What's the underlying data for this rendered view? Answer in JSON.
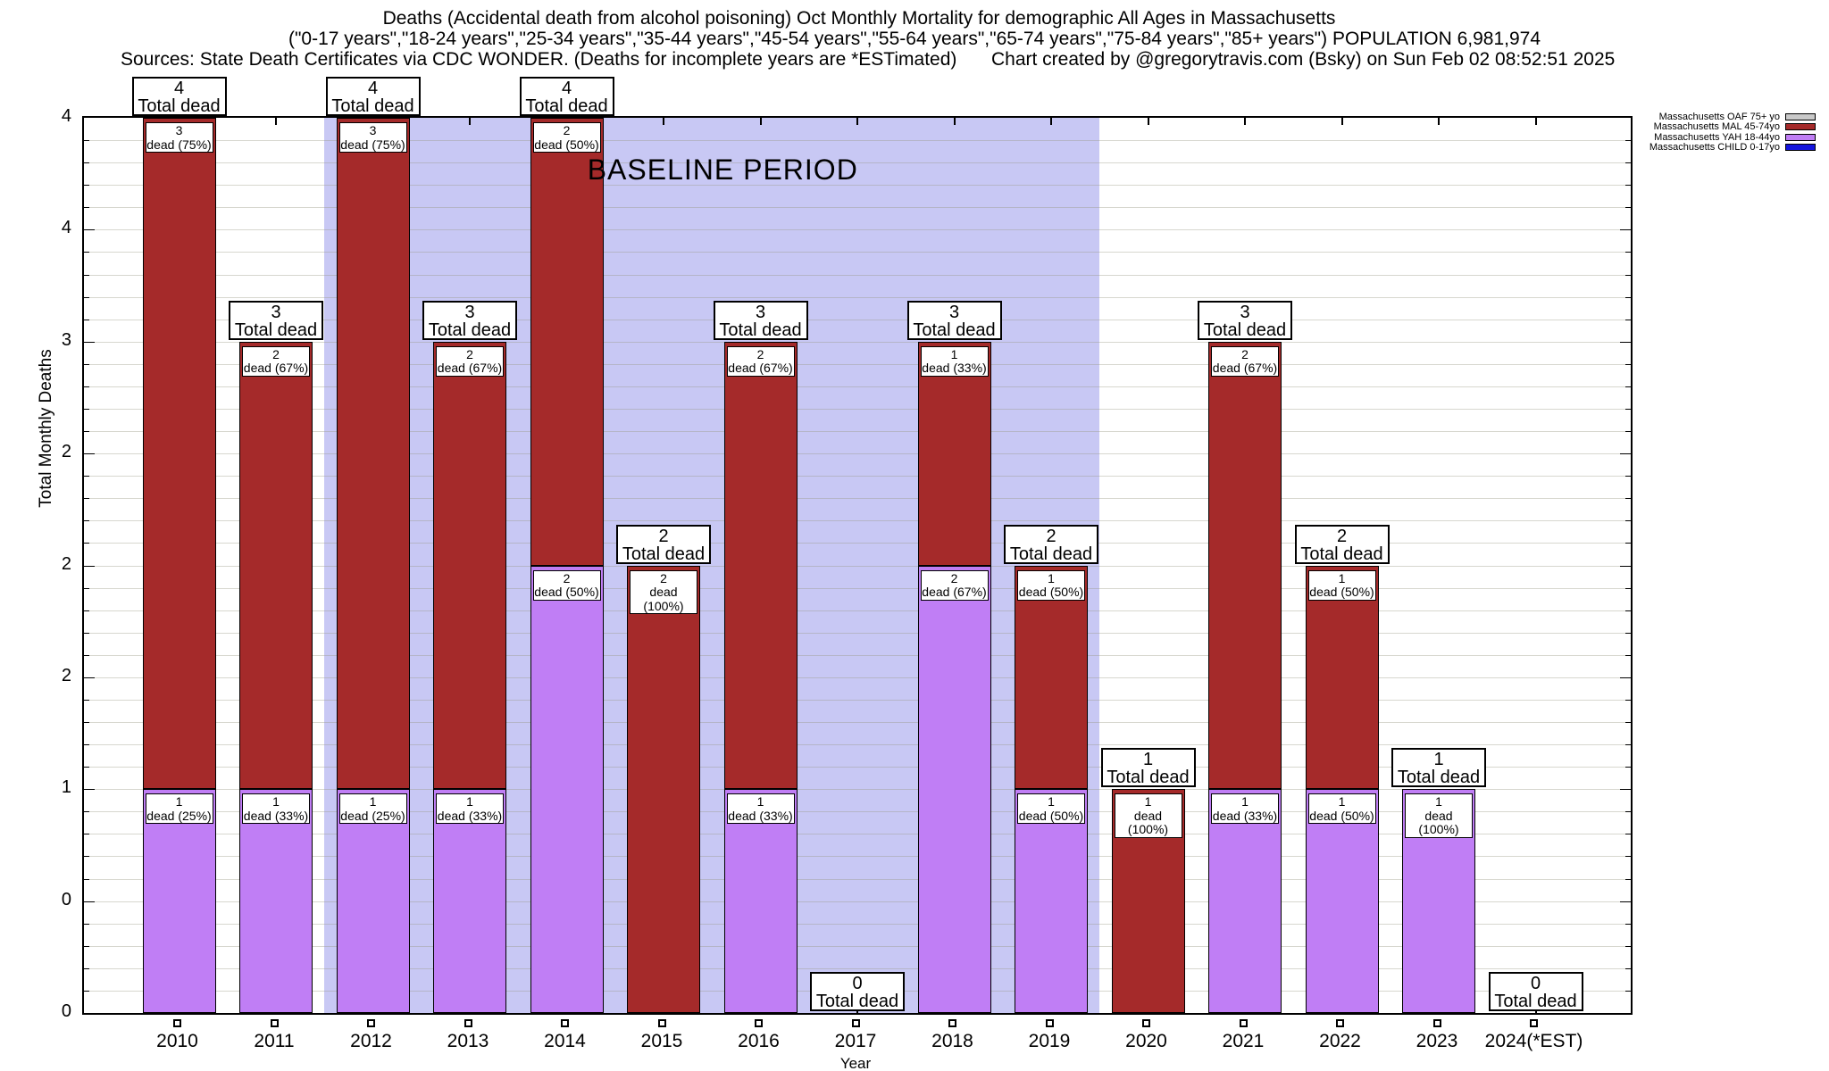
{
  "chart_data": {
    "type": "bar",
    "stacked": true,
    "title": "Deaths (Accidental death from alcohol poisoning) Oct Monthly Mortality for demographic All Ages in Massachusetts",
    "subtitle": "(\"0-17 years\",\"18-24 years\",\"25-34 years\",\"35-44 years\",\"45-54 years\",\"55-64 years\",\"65-74 years\",\"75-84 years\",\"85+ years\") POPULATION 6,981,974",
    "source_note": "Sources: State Death Certificates via CDC WONDER. (Deaths for incomplete years are *ESTimated)",
    "credit_note": "Chart created by @gregorytravis.com (Bsky) on Sun Feb 02 08:52:51 2025",
    "xlabel": "Year",
    "ylabel": "Total Monthly Deaths",
    "ylim": [
      0,
      4
    ],
    "ytick_major_step": 0.5,
    "ytick_minor_step": 0.1,
    "ytick_labels_bottom_to_top": [
      "0",
      "0",
      "1",
      "2",
      "2",
      "2",
      "3",
      "4",
      "4"
    ],
    "grid": true,
    "legend_position": "top-right",
    "categories": [
      "2010",
      "2011",
      "2012",
      "2013",
      "2014",
      "2015",
      "2016",
      "2017",
      "2018",
      "2019",
      "2020",
      "2021",
      "2022",
      "2023",
      "2024(*EST)"
    ],
    "legend": [
      {
        "name": "Massachusetts OAF 75+ yo",
        "color": "#c9c9c9"
      },
      {
        "name": "Massachusetts MAL 45-74yo",
        "color": "#a52a2a"
      },
      {
        "name": "Massachusetts YAH 18-44yo",
        "color": "#c07ef5"
      },
      {
        "name": "Massachusetts CHILD 0-17yo",
        "color": "#1414dd"
      }
    ],
    "series": [
      {
        "name": "Massachusetts YAH 18-44yo",
        "key": "yah",
        "color": "#c07ef5",
        "values": [
          1,
          1,
          1,
          1,
          2,
          0,
          1,
          0,
          2,
          1,
          0,
          1,
          1,
          1,
          0
        ]
      },
      {
        "name": "Massachusetts MAL 45-74yo",
        "key": "mal",
        "color": "#a52a2a",
        "values": [
          3,
          2,
          3,
          2,
          2,
          2,
          2,
          0,
          1,
          1,
          1,
          2,
          1,
          0,
          0
        ]
      },
      {
        "name": "Massachusetts OAF 75+ yo",
        "key": "oaf",
        "color": "#c9c9c9",
        "values": [
          0,
          0,
          0,
          0,
          0,
          0,
          0,
          0,
          0,
          0,
          0,
          0,
          0,
          0,
          0
        ]
      },
      {
        "name": "Massachusetts CHILD 0-17yo",
        "key": "child",
        "color": "#1414dd",
        "values": [
          0,
          0,
          0,
          0,
          0,
          0,
          0,
          0,
          0,
          0,
          0,
          0,
          0,
          0,
          0
        ]
      }
    ],
    "totals": [
      4,
      3,
      4,
      3,
      4,
      2,
      3,
      0,
      3,
      2,
      1,
      3,
      2,
      1,
      0
    ],
    "total_box_word": "Total dead",
    "baseline": {
      "label": "BASELINE PERIOD",
      "start_category": "2012",
      "end_category": "2019",
      "color": "#c8c8f4"
    },
    "bars": [
      {
        "year": "2010",
        "total": 4,
        "segments": [
          {
            "series": "yah",
            "value": 1,
            "count": "1",
            "pct": "dead (25%)"
          },
          {
            "series": "mal",
            "value": 3,
            "count": "3",
            "pct": "dead (75%)"
          }
        ]
      },
      {
        "year": "2011",
        "total": 3,
        "segments": [
          {
            "series": "yah",
            "value": 1,
            "count": "1",
            "pct": "dead (33%)"
          },
          {
            "series": "mal",
            "value": 2,
            "count": "2",
            "pct": "dead (67%)"
          }
        ]
      },
      {
        "year": "2012",
        "total": 4,
        "segments": [
          {
            "series": "yah",
            "value": 1,
            "count": "1",
            "pct": "dead (25%)"
          },
          {
            "series": "mal",
            "value": 3,
            "count": "3",
            "pct": "dead (75%)"
          }
        ]
      },
      {
        "year": "2013",
        "total": 3,
        "segments": [
          {
            "series": "yah",
            "value": 1,
            "count": "1",
            "pct": "dead (33%)"
          },
          {
            "series": "mal",
            "value": 2,
            "count": "2",
            "pct": "dead (67%)"
          }
        ]
      },
      {
        "year": "2014",
        "total": 4,
        "segments": [
          {
            "series": "yah",
            "value": 2,
            "count": "2",
            "pct": "dead (50%)"
          },
          {
            "series": "mal",
            "value": 2,
            "count": "2",
            "pct": "dead (50%)"
          }
        ]
      },
      {
        "year": "2015",
        "total": 2,
        "segments": [
          {
            "series": "mal",
            "value": 2,
            "count": "2",
            "pct": "dead (100%)"
          }
        ]
      },
      {
        "year": "2016",
        "total": 3,
        "segments": [
          {
            "series": "yah",
            "value": 1,
            "count": "1",
            "pct": "dead (33%)"
          },
          {
            "series": "mal",
            "value": 2,
            "count": "2",
            "pct": "dead (67%)"
          }
        ]
      },
      {
        "year": "2017",
        "total": 0,
        "segments": []
      },
      {
        "year": "2018",
        "total": 3,
        "segments": [
          {
            "series": "yah",
            "value": 2,
            "count": "2",
            "pct": "dead (67%)"
          },
          {
            "series": "mal",
            "value": 1,
            "count": "1",
            "pct": "dead (33%)"
          }
        ]
      },
      {
        "year": "2019",
        "total": 2,
        "segments": [
          {
            "series": "yah",
            "value": 1,
            "count": "1",
            "pct": "dead (50%)"
          },
          {
            "series": "mal",
            "value": 1,
            "count": "1",
            "pct": "dead (50%)"
          }
        ]
      },
      {
        "year": "2020",
        "total": 1,
        "segments": [
          {
            "series": "mal",
            "value": 1,
            "count": "1",
            "pct": "dead (100%)"
          }
        ]
      },
      {
        "year": "2021",
        "total": 3,
        "segments": [
          {
            "series": "yah",
            "value": 1,
            "count": "1",
            "pct": "dead (33%)"
          },
          {
            "series": "mal",
            "value": 2,
            "count": "2",
            "pct": "dead (67%)"
          }
        ]
      },
      {
        "year": "2022",
        "total": 2,
        "segments": [
          {
            "series": "yah",
            "value": 1,
            "count": "1",
            "pct": "dead (50%)"
          },
          {
            "series": "mal",
            "value": 1,
            "count": "1",
            "pct": "dead (50%)"
          }
        ]
      },
      {
        "year": "2023",
        "total": 1,
        "segments": [
          {
            "series": "yah",
            "value": 1,
            "count": "1",
            "pct": "dead (100%)"
          }
        ]
      },
      {
        "year": "2024(*EST)",
        "total": 0,
        "segments": []
      }
    ]
  }
}
